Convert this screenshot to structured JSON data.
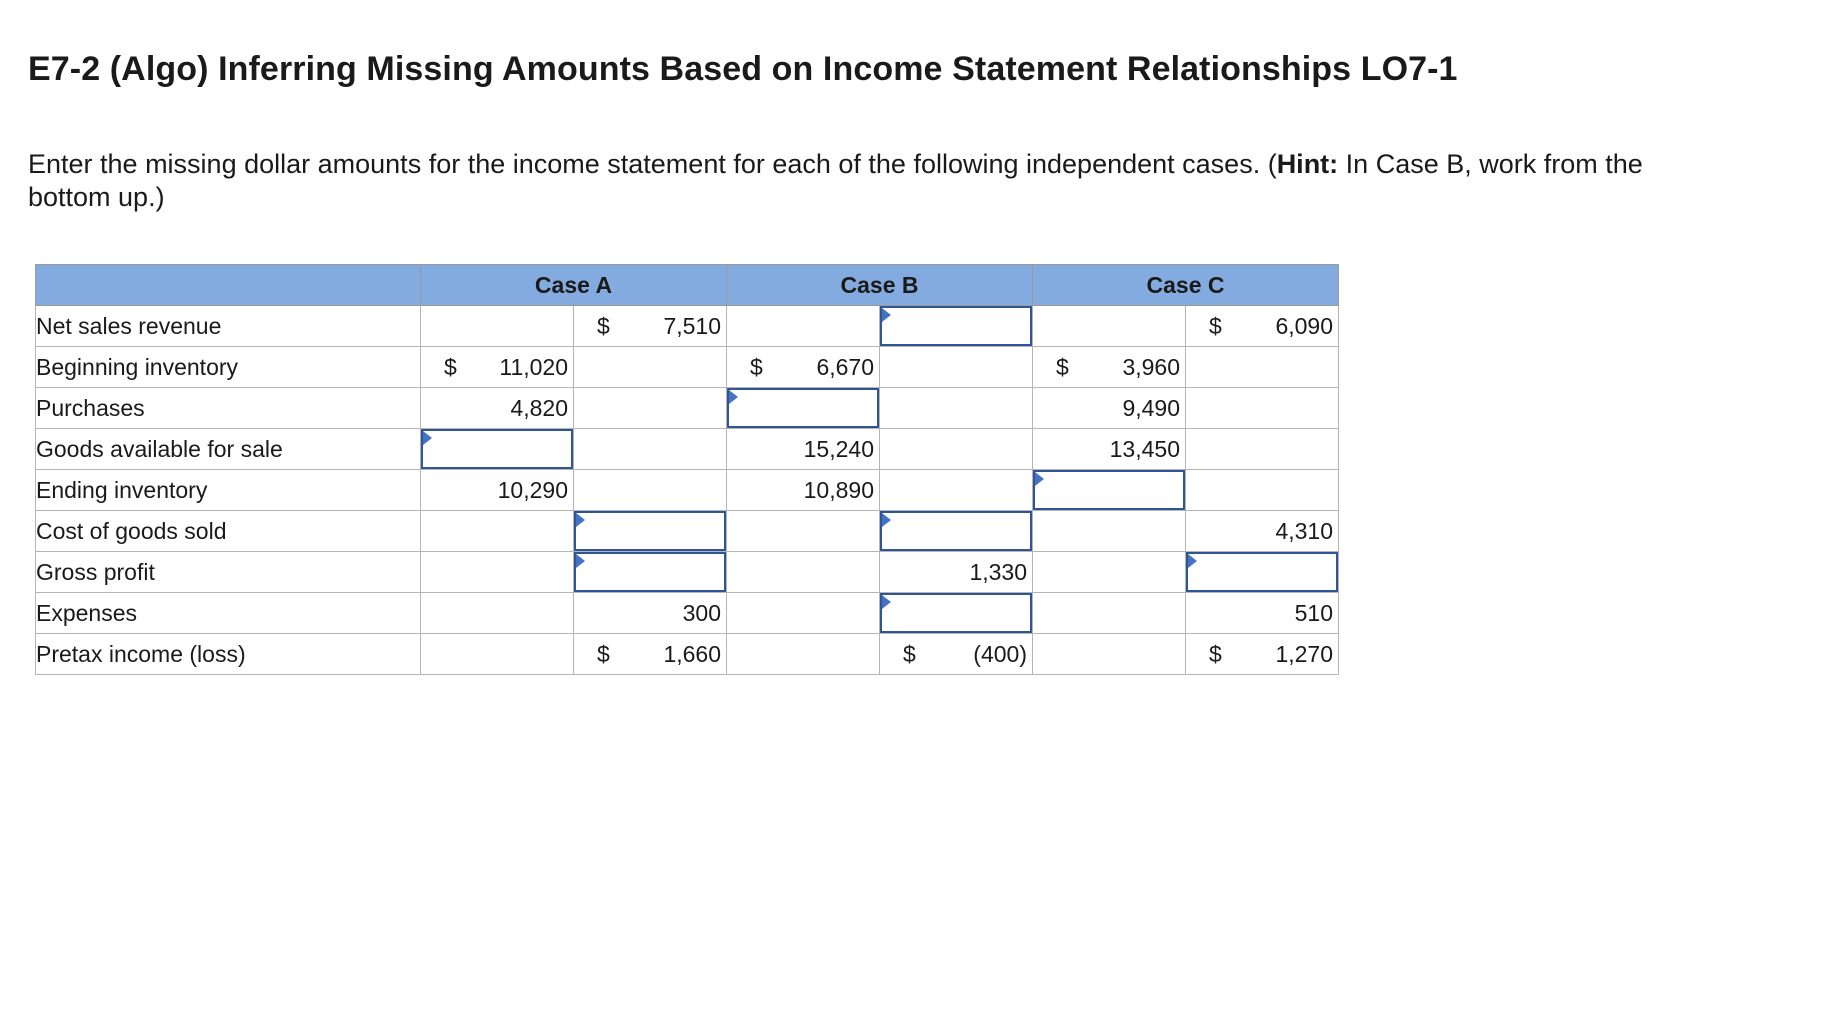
{
  "title": "E7-2 (Algo) Inferring Missing Amounts Based on Income Statement Relationships LO7-1",
  "instructions": {
    "before_hint": "Enter the missing dollar amounts for the income statement for each of the following independent cases. (",
    "hint_label": "Hint:",
    "after_hint": " In Case B, work from the bottom up.)"
  },
  "table": {
    "headers": [
      "",
      "Case A",
      "Case B",
      "Case C"
    ],
    "rows": [
      {
        "label": "Net sales revenue",
        "cells": [
          {
            "type": "empty"
          },
          {
            "type": "value",
            "dollar": "$",
            "value": "7,510"
          },
          {
            "type": "empty"
          },
          {
            "type": "input"
          },
          {
            "type": "empty"
          },
          {
            "type": "value",
            "dollar": "$",
            "value": "6,090"
          }
        ]
      },
      {
        "label": "Beginning inventory",
        "cells": [
          {
            "type": "value",
            "dollar": "$",
            "value": "11,020"
          },
          {
            "type": "empty"
          },
          {
            "type": "value",
            "dollar": "$",
            "value": "6,670"
          },
          {
            "type": "empty"
          },
          {
            "type": "value",
            "dollar": "$",
            "value": "3,960"
          },
          {
            "type": "empty"
          }
        ]
      },
      {
        "label": "Purchases",
        "cells": [
          {
            "type": "value",
            "value": "4,820"
          },
          {
            "type": "empty"
          },
          {
            "type": "input"
          },
          {
            "type": "empty"
          },
          {
            "type": "value",
            "value": "9,490"
          },
          {
            "type": "empty"
          }
        ]
      },
      {
        "label": "Goods available for sale",
        "cells": [
          {
            "type": "input"
          },
          {
            "type": "empty"
          },
          {
            "type": "value",
            "value": "15,240"
          },
          {
            "type": "empty"
          },
          {
            "type": "value",
            "value": "13,450"
          },
          {
            "type": "empty"
          }
        ]
      },
      {
        "label": "Ending inventory",
        "cells": [
          {
            "type": "value",
            "value": "10,290"
          },
          {
            "type": "empty"
          },
          {
            "type": "value",
            "value": "10,890"
          },
          {
            "type": "empty"
          },
          {
            "type": "input"
          },
          {
            "type": "empty"
          }
        ]
      },
      {
        "label": "Cost of goods sold",
        "cells": [
          {
            "type": "empty"
          },
          {
            "type": "input"
          },
          {
            "type": "empty"
          },
          {
            "type": "input"
          },
          {
            "type": "empty"
          },
          {
            "type": "value",
            "value": "4,310"
          }
        ]
      },
      {
        "label": "Gross profit",
        "cells": [
          {
            "type": "empty"
          },
          {
            "type": "input"
          },
          {
            "type": "empty"
          },
          {
            "type": "value",
            "value": "1,330"
          },
          {
            "type": "empty"
          },
          {
            "type": "input"
          }
        ]
      },
      {
        "label": "Expenses",
        "cells": [
          {
            "type": "empty"
          },
          {
            "type": "value",
            "value": "300"
          },
          {
            "type": "empty"
          },
          {
            "type": "input"
          },
          {
            "type": "empty"
          },
          {
            "type": "value",
            "value": "510"
          }
        ]
      },
      {
        "label": "Pretax income (loss)",
        "total": true,
        "cells": [
          {
            "type": "empty"
          },
          {
            "type": "value",
            "dollar": "$",
            "value": "1,660"
          },
          {
            "type": "empty"
          },
          {
            "type": "value",
            "dollar": "$",
            "value": "(400)"
          },
          {
            "type": "empty"
          },
          {
            "type": "value",
            "dollar": "$",
            "value": "1,270"
          }
        ]
      }
    ]
  },
  "colors": {
    "header_bg": "#84abdf",
    "input_border": "#2f5597",
    "input_marker": "#4472c4"
  }
}
